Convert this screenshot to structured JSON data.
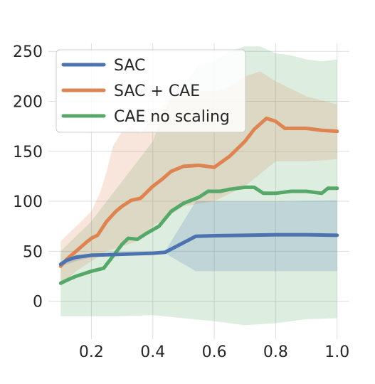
{
  "chart_data": {
    "type": "line",
    "title": "",
    "xlabel": "",
    "ylabel": "",
    "xlim": [
      0.06,
      1.04
    ],
    "ylim": [
      -38,
      258
    ],
    "grid": true,
    "legend_position": "top-left",
    "x_ticks": [
      0.2,
      0.4,
      0.6,
      0.8,
      1.0
    ],
    "x_tick_labels": [
      "0.2",
      "0.4",
      "0.6",
      "0.8",
      "1.0"
    ],
    "y_ticks": [
      0,
      50,
      100,
      150,
      200,
      250
    ],
    "y_tick_labels": [
      "0",
      "50",
      "100",
      "150",
      "200",
      "250"
    ],
    "series": [
      {
        "name": "SAC",
        "color": "#4c72b0",
        "points": [
          [
            0.1,
            37
          ],
          [
            0.12,
            41
          ],
          [
            0.15,
            44
          ],
          [
            0.2,
            46
          ],
          [
            0.3,
            47
          ],
          [
            0.4,
            48
          ],
          [
            0.44,
            49
          ],
          [
            0.54,
            65
          ],
          [
            0.6,
            65.5
          ],
          [
            0.7,
            66
          ],
          [
            0.8,
            66.5
          ],
          [
            0.9,
            66.5
          ],
          [
            1.0,
            66
          ]
        ],
        "band_lower": [
          [
            0.1,
            35
          ],
          [
            0.15,
            40
          ],
          [
            0.2,
            44
          ],
          [
            0.3,
            46
          ],
          [
            0.4,
            47
          ],
          [
            0.44,
            48
          ],
          [
            0.54,
            30
          ],
          [
            0.7,
            30
          ],
          [
            0.8,
            30
          ],
          [
            1.0,
            30
          ]
        ],
        "band_upper": [
          [
            0.1,
            39
          ],
          [
            0.15,
            46
          ],
          [
            0.2,
            48
          ],
          [
            0.3,
            48
          ],
          [
            0.4,
            49
          ],
          [
            0.44,
            50
          ],
          [
            0.54,
            100
          ],
          [
            0.7,
            100
          ],
          [
            0.8,
            100
          ],
          [
            1.0,
            101
          ]
        ]
      },
      {
        "name": "SAC + CAE",
        "color": "#dd8452",
        "points": [
          [
            0.1,
            35
          ],
          [
            0.12,
            42
          ],
          [
            0.15,
            50
          ],
          [
            0.18,
            58
          ],
          [
            0.2,
            63
          ],
          [
            0.22,
            66
          ],
          [
            0.25,
            80
          ],
          [
            0.28,
            90
          ],
          [
            0.3,
            95
          ],
          [
            0.33,
            101
          ],
          [
            0.36,
            103
          ],
          [
            0.4,
            115
          ],
          [
            0.43,
            122
          ],
          [
            0.46,
            130
          ],
          [
            0.5,
            135
          ],
          [
            0.55,
            136
          ],
          [
            0.6,
            134
          ],
          [
            0.65,
            145
          ],
          [
            0.7,
            160
          ],
          [
            0.73,
            172
          ],
          [
            0.77,
            183
          ],
          [
            0.8,
            180
          ],
          [
            0.83,
            173
          ],
          [
            0.9,
            173
          ],
          [
            0.95,
            171
          ],
          [
            1.0,
            170
          ]
        ],
        "band_lower": [
          [
            0.1,
            15
          ],
          [
            0.15,
            30
          ],
          [
            0.2,
            40
          ],
          [
            0.25,
            50
          ],
          [
            0.3,
            55
          ],
          [
            0.35,
            60
          ],
          [
            0.4,
            75
          ],
          [
            0.45,
            85
          ],
          [
            0.5,
            95
          ],
          [
            0.6,
            100
          ],
          [
            0.7,
            115
          ],
          [
            0.8,
            140
          ],
          [
            0.9,
            140
          ],
          [
            1.0,
            142
          ]
        ],
        "band_upper": [
          [
            0.1,
            60
          ],
          [
            0.15,
            75
          ],
          [
            0.2,
            90
          ],
          [
            0.23,
            110
          ],
          [
            0.25,
            130
          ],
          [
            0.27,
            155
          ],
          [
            0.3,
            170
          ],
          [
            0.33,
            175
          ],
          [
            0.36,
            168
          ],
          [
            0.4,
            185
          ],
          [
            0.43,
            195
          ],
          [
            0.46,
            205
          ],
          [
            0.5,
            210
          ],
          [
            0.6,
            210
          ],
          [
            0.65,
            215
          ],
          [
            0.7,
            225
          ],
          [
            0.75,
            230
          ],
          [
            0.8,
            220
          ],
          [
            0.9,
            205
          ],
          [
            1.0,
            197
          ]
        ]
      },
      {
        "name": "CAE no scaling",
        "color": "#55a868",
        "points": [
          [
            0.1,
            18
          ],
          [
            0.12,
            21
          ],
          [
            0.15,
            25
          ],
          [
            0.18,
            28
          ],
          [
            0.2,
            30
          ],
          [
            0.24,
            33
          ],
          [
            0.27,
            45
          ],
          [
            0.3,
            57
          ],
          [
            0.32,
            63
          ],
          [
            0.35,
            62
          ],
          [
            0.38,
            68
          ],
          [
            0.42,
            75
          ],
          [
            0.46,
            90
          ],
          [
            0.5,
            98
          ],
          [
            0.55,
            104
          ],
          [
            0.58,
            110
          ],
          [
            0.62,
            110
          ],
          [
            0.65,
            112
          ],
          [
            0.7,
            114
          ],
          [
            0.73,
            114
          ],
          [
            0.76,
            108
          ],
          [
            0.8,
            108
          ],
          [
            0.85,
            110
          ],
          [
            0.9,
            110
          ],
          [
            0.95,
            108
          ],
          [
            0.97,
            113
          ],
          [
            1.0,
            113
          ]
        ],
        "band_lower": [
          [
            0.1,
            -15
          ],
          [
            0.15,
            -15
          ],
          [
            0.2,
            -15
          ],
          [
            0.3,
            -15
          ],
          [
            0.4,
            -14
          ],
          [
            0.5,
            -17
          ],
          [
            0.6,
            -20
          ],
          [
            0.7,
            -24
          ],
          [
            0.8,
            -22
          ],
          [
            0.9,
            -18
          ],
          [
            1.0,
            -17
          ]
        ],
        "band_upper": [
          [
            0.1,
            50
          ],
          [
            0.15,
            65
          ],
          [
            0.2,
            80
          ],
          [
            0.25,
            100
          ],
          [
            0.3,
            120
          ],
          [
            0.35,
            140
          ],
          [
            0.4,
            160
          ],
          [
            0.43,
            185
          ],
          [
            0.46,
            205
          ],
          [
            0.5,
            215
          ],
          [
            0.55,
            238
          ],
          [
            0.6,
            240
          ],
          [
            0.65,
            250
          ],
          [
            0.7,
            255
          ],
          [
            0.75,
            255
          ],
          [
            0.8,
            248
          ],
          [
            0.85,
            246
          ],
          [
            0.9,
            242
          ],
          [
            0.95,
            240
          ],
          [
            1.0,
            242
          ]
        ]
      }
    ],
    "band_opacity": 0.2,
    "background_color": "#ffffff",
    "grid_color": "#dddddd"
  }
}
